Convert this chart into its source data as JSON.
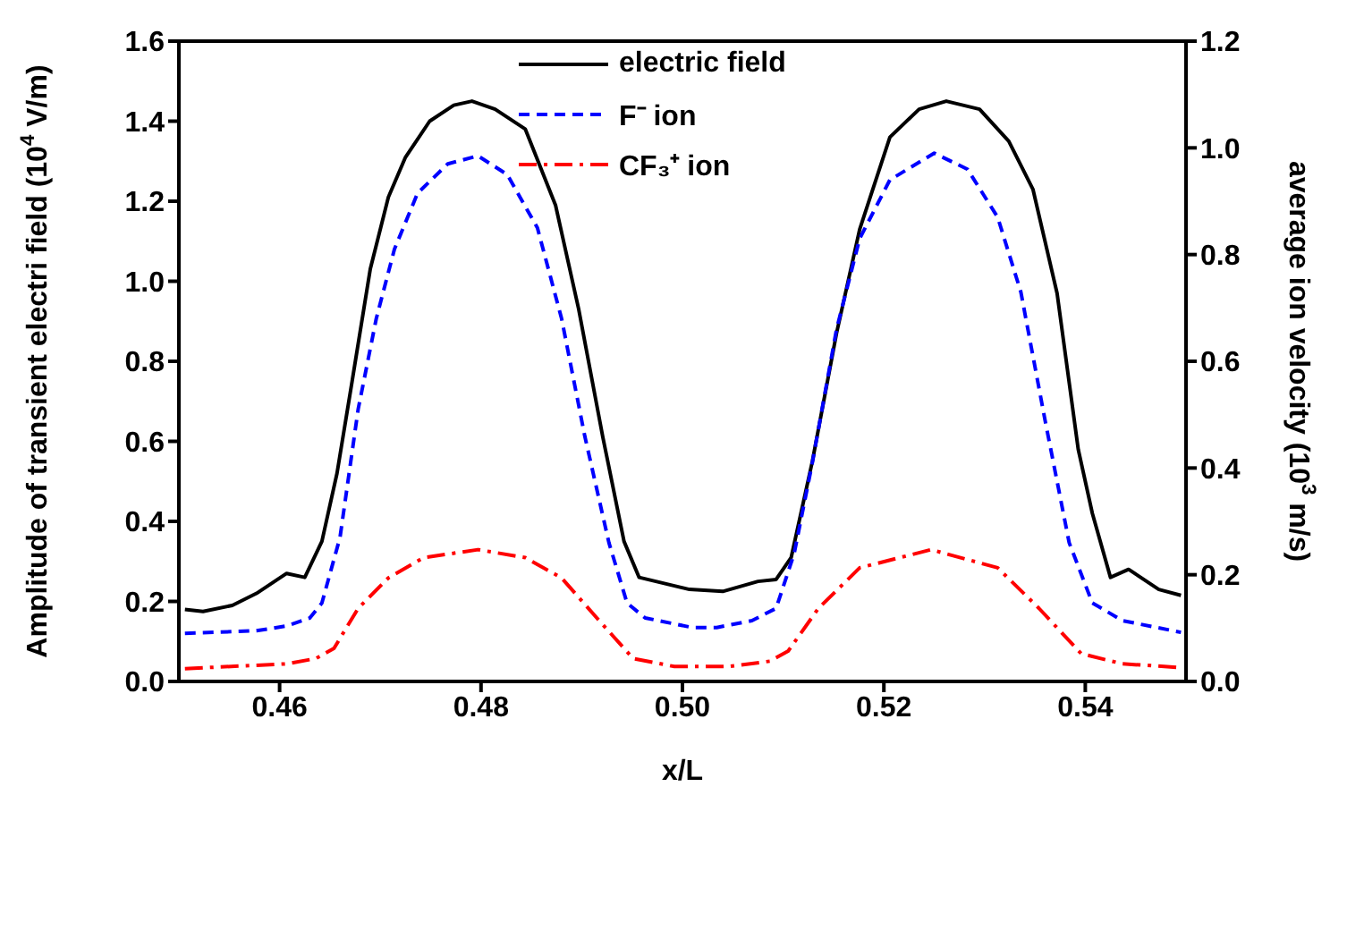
{
  "chart_data": {
    "type": "line",
    "xlabel": "x/L",
    "ylabel": "Amplitude of transient electri field (10$^{4}$ V/m)",
    "y2label": "average ion velocity (10$^{3}$ m/s)",
    "xlim": [
      0.45,
      0.55
    ],
    "xticks": [
      0.46,
      0.48,
      {
        "value": 0.5,
        "label": "0.50"
      },
      0.52,
      0.54
    ],
    "ylim": [
      0,
      1.6
    ],
    "yticks": [
      {
        "value": 0,
        "label": "0.0"
      },
      0.2,
      0.4,
      0.6,
      0.8,
      {
        "value": 1,
        "label": "1.0"
      },
      1.2,
      1.4,
      1.6
    ],
    "y2lim": [
      0,
      1.2
    ],
    "y2ticks": [
      {
        "value": 0,
        "label": "0.0"
      },
      0.2,
      0.4,
      0.6,
      0.8,
      {
        "value": 1,
        "label": "1.0"
      },
      1.2
    ],
    "legend": "top",
    "marker": "none",
    "series": [
      {
        "name": "electric field",
        "color": "#000000",
        "line_style": "solid",
        "x": [
          0.4506,
          0.4524,
          0.4553,
          0.4577,
          0.4607,
          0.4625,
          0.4642,
          0.4657,
          0.4672,
          0.469,
          0.4708,
          0.4725,
          0.4749,
          0.4773,
          0.4791,
          0.4814,
          0.4844,
          0.4874,
          0.4897,
          0.4921,
          0.4942,
          0.4957,
          0.5007,
          0.504,
          0.5075,
          0.5093,
          0.5108,
          0.5129,
          0.5153,
          0.5176,
          0.5206,
          0.5235,
          0.5262,
          0.5295,
          0.5324,
          0.5348,
          0.5372,
          0.5393,
          0.5407,
          0.5425,
          0.5443,
          0.5473,
          0.5495
        ],
        "values": [
          0.18,
          0.175,
          0.19,
          0.22,
          0.27,
          0.26,
          0.35,
          0.52,
          0.75,
          1.03,
          1.21,
          1.31,
          1.4,
          1.44,
          1.45,
          1.43,
          1.38,
          1.19,
          0.93,
          0.61,
          0.35,
          0.26,
          0.23,
          0.225,
          0.25,
          0.255,
          0.31,
          0.55,
          0.87,
          1.13,
          1.36,
          1.43,
          1.45,
          1.43,
          1.35,
          1.23,
          0.97,
          0.58,
          0.42,
          0.26,
          0.28,
          0.23,
          0.215
        ]
      },
      {
        "name": "F⁻ ion",
        "color": "#0000ff",
        "line_style": "dashed",
        "axis": "y2",
        "x": [
          0.4506,
          0.4577,
          0.4607,
          0.463,
          0.4642,
          0.466,
          0.4678,
          0.4696,
          0.4714,
          0.4737,
          0.4767,
          0.4797,
          0.4826,
          0.4856,
          0.488,
          0.4903,
          0.4927,
          0.4945,
          0.4963,
          0.501,
          0.5034,
          0.5069,
          0.5093,
          0.5111,
          0.5129,
          0.5153,
          0.5176,
          0.5206,
          0.525,
          0.5283,
          0.5313,
          0.5336,
          0.536,
          0.5384,
          0.5407,
          0.5437,
          0.5495
        ],
        "values": [
          0.09,
          0.095,
          0.104,
          0.119,
          0.147,
          0.27,
          0.51,
          0.68,
          0.81,
          0.915,
          0.97,
          0.985,
          0.95,
          0.85,
          0.68,
          0.46,
          0.26,
          0.147,
          0.119,
          0.101,
          0.101,
          0.114,
          0.137,
          0.24,
          0.41,
          0.66,
          0.83,
          0.94,
          0.99,
          0.96,
          0.87,
          0.73,
          0.49,
          0.26,
          0.147,
          0.114,
          0.092
        ]
      },
      {
        "name": "CF₃⁺ ion",
        "color": "#ff0000",
        "line_style": "dashdot",
        "axis": "y2",
        "x": [
          0.4506,
          0.4607,
          0.4636,
          0.4654,
          0.4678,
          0.4708,
          0.4743,
          0.4797,
          0.4844,
          0.488,
          0.4915,
          0.4951,
          0.4992,
          0.5046,
          0.5087,
          0.5105,
          0.5135,
          0.5176,
          0.5247,
          0.5313,
          0.5354,
          0.5396,
          0.5437,
          0.5495
        ],
        "values": [
          0.024,
          0.033,
          0.043,
          0.062,
          0.137,
          0.194,
          0.232,
          0.247,
          0.232,
          0.194,
          0.119,
          0.043,
          0.028,
          0.028,
          0.038,
          0.057,
          0.137,
          0.213,
          0.247,
          0.213,
          0.137,
          0.052,
          0.033,
          0.026
        ]
      }
    ]
  }
}
